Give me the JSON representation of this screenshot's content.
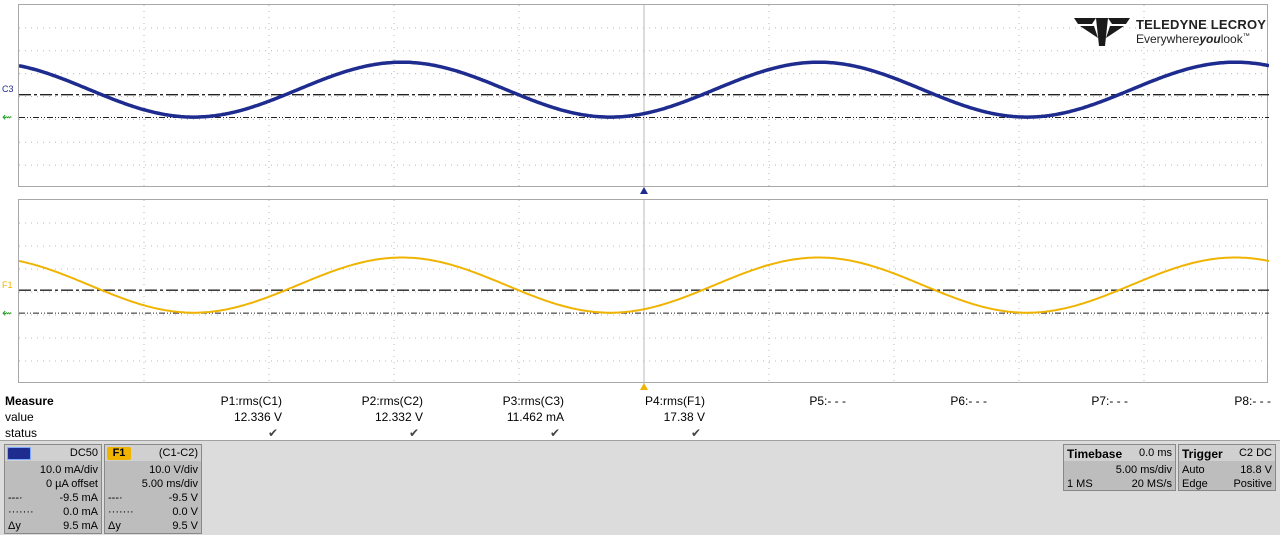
{
  "brand": {
    "name": "TELEDYNE LECROY",
    "tagline_pre": "Everywhere",
    "tagline_bold": "you",
    "tagline_post": "look",
    "tm": "™"
  },
  "channels": {
    "c3": {
      "label": "C3",
      "color": "#1f2c8f"
    },
    "f1": {
      "label": "F1",
      "color": "#f0b400"
    }
  },
  "measure": {
    "row_labels": {
      "measure": "Measure",
      "value": "value",
      "status": "status"
    },
    "params": [
      {
        "name": "P1:rms(C1)",
        "value": "12.336 V",
        "status": "✔"
      },
      {
        "name": "P2:rms(C2)",
        "value": "12.332 V",
        "status": "✔"
      },
      {
        "name": "P3:rms(C3)",
        "value": "11.462 mA",
        "status": "✔"
      },
      {
        "name": "P4:rms(F1)",
        "value": "17.38 V",
        "status": "✔"
      },
      {
        "name": "P5:- - -",
        "value": "",
        "status": ""
      },
      {
        "name": "P6:- - -",
        "value": "",
        "status": ""
      },
      {
        "name": "P7:- - -",
        "value": "",
        "status": ""
      },
      {
        "name": "P8:- - -",
        "value": "",
        "status": ""
      }
    ]
  },
  "tiles": {
    "c3": {
      "badge": "C3",
      "coupling": "DC50",
      "vdiv": "10.0 mA/div",
      "offset": "0 µA offset",
      "c1_lbl": "---·",
      "c1_val": "-9.5 mA",
      "c2_lbl": "·······",
      "c2_val": "0.0 mA",
      "dy_lbl": "Δy",
      "dy_val": "9.5 mA"
    },
    "f1": {
      "badge": "F1",
      "func": "(C1-C2)",
      "vdiv": "10.0 V/div",
      "tdiv": "5.00 ms/div",
      "c1_lbl": "---·",
      "c1_val": "-9.5 V",
      "c2_lbl": "·······",
      "c2_val": "0.0 V",
      "dy_lbl": "Δy",
      "dy_val": "9.5 V"
    }
  },
  "timebase": {
    "title": "Timebase",
    "delay": "0.0 ms",
    "tdiv": "5.00 ms/div",
    "points": "1 MS",
    "rate": "20 MS/s"
  },
  "trigger": {
    "title": "Trigger",
    "source": "C2 DC",
    "mode": "Auto",
    "level": "18.8 V",
    "type": "Edge",
    "slope": "Positive"
  },
  "waveforms": {
    "c3": {
      "periods_per_screen": 3,
      "phase_deg": 32,
      "amplitude_div": 2.4,
      "center_div": 1.2
    },
    "f1": {
      "periods_per_screen": 3,
      "phase_deg": 32,
      "amplitude_div": 2.4,
      "center_div": 1.2
    }
  }
}
